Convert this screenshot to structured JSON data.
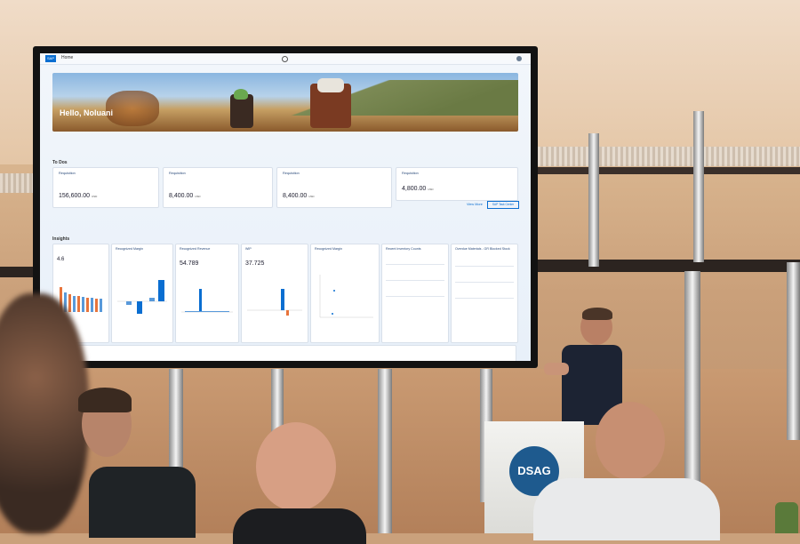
{
  "scene": {
    "description": "Conference presentation of an SAP Fiori launchpad projected on a large screen",
    "colors": {
      "wall": "#d9b58f",
      "screen_bg": "#eef4fb",
      "accent": "#0a6ed1",
      "podium_logo": "#1e5a8e"
    }
  },
  "screen": {
    "app": {
      "logo": "SAP",
      "home": "Home",
      "greeting": "Hello, Noluani",
      "todo_title": "To Dos",
      "todo_cards": [
        {
          "title": "Requisition",
          "amount": "156,600.00",
          "unit": "USD"
        },
        {
          "title": "Requisition",
          "amount": "8,400.00",
          "unit": "USD"
        },
        {
          "title": "Requisition",
          "amount": "8,400.00",
          "unit": "USD"
        },
        {
          "title": "Requisition",
          "amount": "4,800.00",
          "unit": "USD"
        }
      ],
      "view_more": "View More",
      "sap_task_center": "SAP Task Center",
      "insights_title": "Insights",
      "insight_cards": [
        {
          "title": "Recognized Margin",
          "value": ""
        },
        {
          "title": "Recognized Revenue",
          "value": "54.789"
        },
        {
          "title": "WIP",
          "value": "37.725"
        },
        {
          "title": "Recognized Margin",
          "value": ""
        },
        {
          "title": "Recent Inventory Counts",
          "value": ""
        },
        {
          "title": "Overdue Materials - GR Blocked Stock",
          "value": ""
        }
      ],
      "first_kpi": "4.6",
      "chart_labels": [
        "Recognized Margin by Period",
        "Recognized Revenue By G/L Account",
        "WIP by Company",
        "Recognized Margin by Sales Organization"
      ]
    }
  },
  "podium": {
    "logo_text": "DSAG"
  }
}
